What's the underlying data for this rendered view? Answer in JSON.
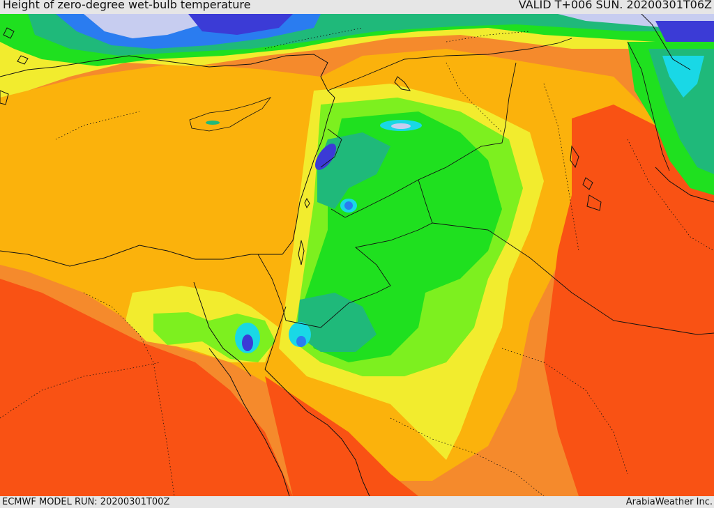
{
  "header": {
    "title": "Height of zero-degree wet-bulb temperature",
    "valid": "VALID T+006 SUN. 20200301T06Z"
  },
  "footer": {
    "model_run": "ECMWF MODEL RUN: 20200301T00Z",
    "brand": "ArabiaWeather Inc."
  },
  "map": {
    "field": "zero-degree wet-bulb height",
    "color_scale": [
      "#c7cdf0",
      "#3b3bd6",
      "#2a7cf0",
      "#19d8e6",
      "#1fb97a",
      "#1fe01f",
      "#7df01f",
      "#d8f030",
      "#f2ec2e",
      "#fbb20c",
      "#f58a2c",
      "#f95214"
    ],
    "lines": {
      "coastline": "#111111",
      "borders": "#111111",
      "internal_borders": "dotted"
    }
  }
}
